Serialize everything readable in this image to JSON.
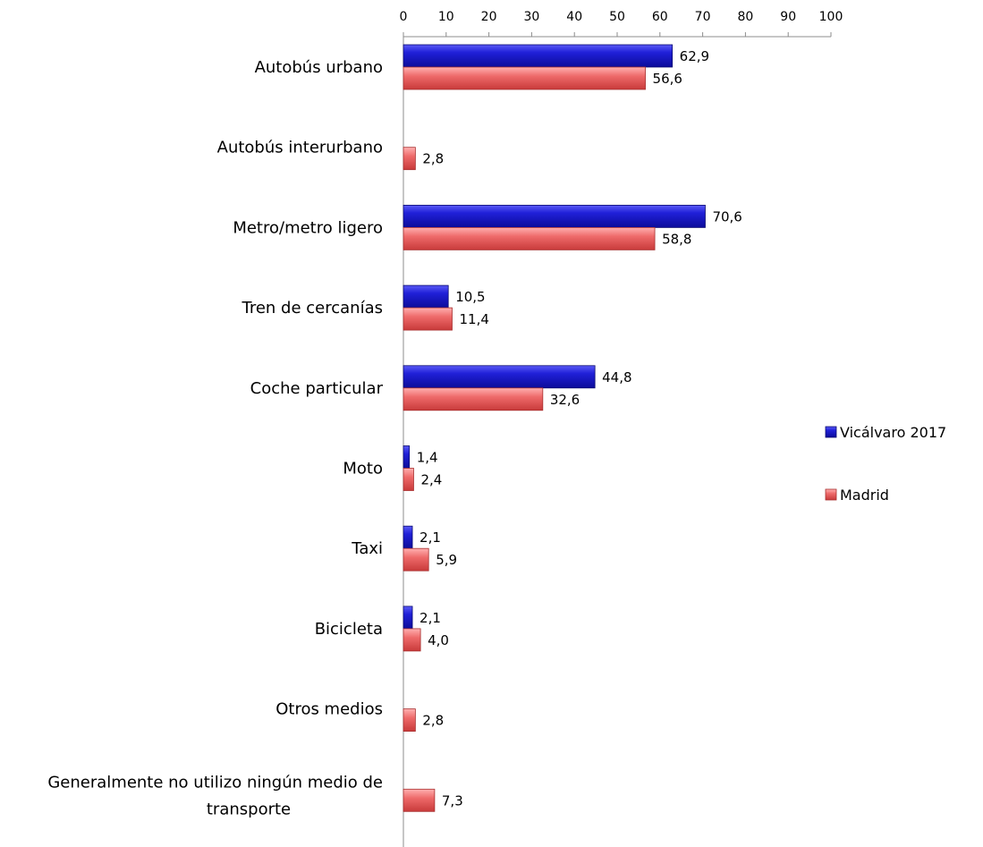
{
  "chart_data": {
    "type": "bar",
    "orientation": "horizontal",
    "categories": [
      "Autobús urbano",
      "Autobús interurbano",
      "Metro/metro ligero",
      "Tren de cercanías",
      "Coche particular",
      "Moto",
      "Taxi",
      "Bicicleta",
      "Otros medios",
      [
        "Generalmente no utilizo ningún medio de",
        "transporte"
      ]
    ],
    "series": [
      {
        "name": "Vicálvaro 2017",
        "color": "#1a1acc",
        "values": [
          62.9,
          null,
          70.6,
          10.5,
          44.8,
          1.4,
          2.1,
          2.1,
          null,
          null
        ],
        "labels": [
          "62,9",
          "",
          "70,6",
          "10,5",
          "44,8",
          "1,4",
          "2,1",
          "2,1",
          "",
          ""
        ]
      },
      {
        "name": "Madrid",
        "color": "#e85a5a",
        "values": [
          56.6,
          2.8,
          58.8,
          11.4,
          32.6,
          2.4,
          5.9,
          4.0,
          2.8,
          7.3
        ],
        "labels": [
          "56,6",
          "2,8",
          "58,8",
          "11,4",
          "32,6",
          "2,4",
          "5,9",
          "4,0",
          "2,8",
          "7,3"
        ]
      }
    ],
    "xlim": [
      0,
      100
    ],
    "xticks": [
      0,
      10,
      20,
      30,
      40,
      50,
      60,
      70,
      80,
      90,
      100
    ],
    "xaxis_position": "top",
    "grid": false,
    "legend_position": "right"
  }
}
